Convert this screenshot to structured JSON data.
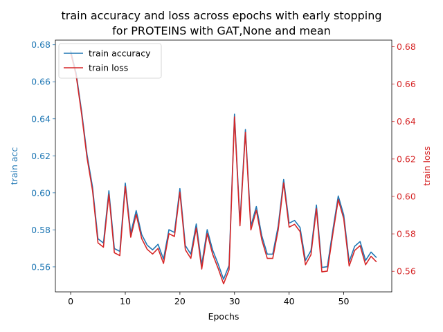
{
  "chart_data": {
    "type": "line",
    "title_lines": [
      "train accuracy and loss across epochs with early stopping",
      "for PROTEINS with GAT,None  and mean"
    ],
    "xlabel": "Epochs",
    "ylabel_left": "train acc",
    "ylabel_right": "train loss",
    "xlim": [
      -2.8,
      58.8
    ],
    "ylim_left": [
      0.5465,
      0.6825
    ],
    "ylim_right": [
      0.549,
      0.6835
    ],
    "x_ticks": [
      0,
      10,
      20,
      30,
      40,
      50
    ],
    "y_ticks_left": [
      0.56,
      0.58,
      0.6,
      0.62,
      0.64,
      0.66,
      0.68
    ],
    "y_ticks_right": [
      0.56,
      0.58,
      0.6,
      0.62,
      0.64,
      0.66,
      0.68
    ],
    "grid": false,
    "legend_position": "upper left",
    "colors": {
      "acc": "#1f77b4",
      "loss": "#d62728"
    },
    "x": [
      0,
      1,
      2,
      3,
      4,
      5,
      6,
      7,
      8,
      9,
      10,
      11,
      12,
      13,
      14,
      15,
      16,
      17,
      18,
      19,
      20,
      21,
      22,
      23,
      24,
      25,
      26,
      27,
      28,
      29,
      30,
      31,
      32,
      33,
      34,
      35,
      36,
      37,
      38,
      39,
      40,
      41,
      42,
      43,
      44,
      45,
      46,
      47,
      48,
      49,
      50,
      51,
      52,
      53,
      54,
      55,
      56
    ],
    "series": [
      {
        "name": "train accuracy",
        "axis": "left",
        "values": [
          0.6768,
          0.6647,
          0.6441,
          0.6206,
          0.6032,
          0.5752,
          0.5729,
          0.6011,
          0.5699,
          0.5684,
          0.6053,
          0.5782,
          0.5904,
          0.5775,
          0.5718,
          0.5692,
          0.5722,
          0.5642,
          0.5801,
          0.5786,
          0.6023,
          0.5715,
          0.5669,
          0.5832,
          0.5612,
          0.5801,
          0.5691,
          0.5616,
          0.5533,
          0.5608,
          0.6425,
          0.5843,
          0.6342,
          0.5821,
          0.5926,
          0.5768,
          0.5669,
          0.5669,
          0.5821,
          0.6072,
          0.5836,
          0.5851,
          0.5813,
          0.5635,
          0.5688,
          0.5934,
          0.5597,
          0.5601,
          0.5798,
          0.5983,
          0.5881,
          0.5628,
          0.5711,
          0.5737,
          0.5635,
          0.568,
          0.565
        ]
      },
      {
        "name": "train loss",
        "axis": "right",
        "values": [
          0.6768,
          0.6647,
          0.6441,
          0.6206,
          0.6032,
          0.5752,
          0.5729,
          0.6011,
          0.5699,
          0.5684,
          0.6053,
          0.5782,
          0.5904,
          0.5775,
          0.5718,
          0.5692,
          0.5722,
          0.5642,
          0.5801,
          0.5786,
          0.6023,
          0.5715,
          0.5669,
          0.5832,
          0.5612,
          0.5801,
          0.5691,
          0.5616,
          0.5533,
          0.5608,
          0.6425,
          0.5843,
          0.6342,
          0.5821,
          0.5926,
          0.5768,
          0.5669,
          0.5669,
          0.5821,
          0.6072,
          0.5836,
          0.5851,
          0.5813,
          0.5635,
          0.5688,
          0.5934,
          0.5597,
          0.5601,
          0.5798,
          0.5983,
          0.5881,
          0.5628,
          0.5711,
          0.5737,
          0.5635,
          0.568,
          0.565
        ]
      }
    ]
  }
}
